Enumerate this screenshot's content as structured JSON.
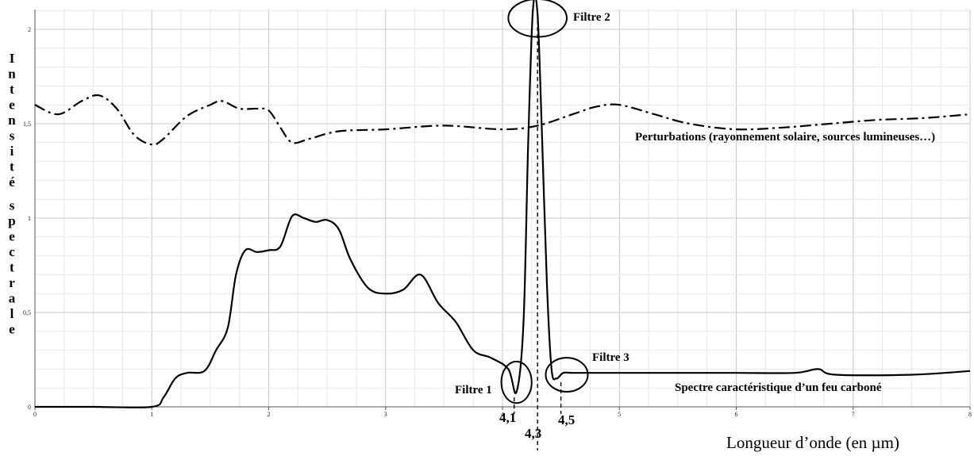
{
  "chart_data": {
    "type": "line",
    "xlabel": "Longueur d’onde (en µm)",
    "ylabel": "Intensité spectrale",
    "xlim": [
      0,
      8
    ],
    "ylim": [
      0,
      2.1
    ],
    "grid": true,
    "x_ticks": [
      "0",
      "1",
      "2",
      "3",
      "4",
      "5",
      "6",
      "7",
      "8"
    ],
    "y_ticks": [
      {
        "value": 0,
        "label": "0"
      },
      {
        "value": 0.5,
        "label": "0,5"
      },
      {
        "value": 1,
        "label": "1"
      },
      {
        "value": 1.5,
        "label": "1,5"
      },
      {
        "value": 2,
        "label": "2"
      }
    ],
    "series": [
      {
        "name": "Perturbations (rayonnement solaire, sources lumineuses…)",
        "style": "dash-dot",
        "x": [
          0,
          0.2,
          0.4,
          0.55,
          0.7,
          0.85,
          1.0,
          1.1,
          1.3,
          1.5,
          1.6,
          1.75,
          1.9,
          2.0,
          2.1,
          2.2,
          2.35,
          2.6,
          3.0,
          3.5,
          4.0,
          4.3,
          4.6,
          4.8,
          5.0,
          5.3,
          5.6,
          6.0,
          6.4,
          6.8,
          7.2,
          7.6,
          8.0
        ],
        "y": [
          1.6,
          1.55,
          1.62,
          1.65,
          1.58,
          1.44,
          1.39,
          1.42,
          1.54,
          1.6,
          1.62,
          1.58,
          1.58,
          1.57,
          1.48,
          1.4,
          1.42,
          1.46,
          1.47,
          1.49,
          1.47,
          1.49,
          1.55,
          1.59,
          1.6,
          1.55,
          1.5,
          1.47,
          1.48,
          1.5,
          1.52,
          1.53,
          1.55
        ]
      },
      {
        "name": "Spectre caractéristique d’un feu carboné",
        "style": "solid",
        "x": [
          0,
          0.5,
          1.0,
          1.1,
          1.2,
          1.3,
          1.45,
          1.55,
          1.65,
          1.72,
          1.8,
          1.9,
          2.0,
          2.1,
          2.2,
          2.3,
          2.4,
          2.5,
          2.6,
          2.7,
          2.85,
          3.0,
          3.15,
          3.3,
          3.45,
          3.6,
          3.75,
          3.9,
          4.05,
          4.12,
          4.18,
          4.22,
          4.26,
          4.3,
          4.34,
          4.38,
          4.42,
          4.46,
          4.52,
          4.6,
          4.8,
          5.5,
          6.0,
          6.5,
          6.7,
          6.85,
          7.5,
          8.0
        ],
        "y": [
          0,
          0,
          0,
          0.05,
          0.15,
          0.18,
          0.19,
          0.3,
          0.42,
          0.7,
          0.83,
          0.82,
          0.83,
          0.85,
          1.01,
          1.0,
          0.98,
          0.99,
          0.94,
          0.78,
          0.63,
          0.6,
          0.62,
          0.7,
          0.55,
          0.45,
          0.3,
          0.26,
          0.2,
          0.08,
          0.45,
          1.4,
          2.1,
          2.08,
          1.4,
          0.65,
          0.2,
          0.15,
          0.18,
          0.18,
          0.18,
          0.18,
          0.18,
          0.18,
          0.2,
          0.17,
          0.17,
          0.19
        ]
      }
    ],
    "annotations": {
      "filters": [
        {
          "label": "Filtre 1",
          "cx": 4.12,
          "cy": 0.13,
          "rx": 0.13,
          "ry": 0.11,
          "line_x": 4.1,
          "line_top": 0.05
        },
        {
          "label": "Filtre 2",
          "cx": 4.3,
          "cy": 2.06,
          "rx": 0.25,
          "ry": 0.1,
          "line_x": 4.3,
          "line_top": 2.05
        },
        {
          "label": "Filtre 3",
          "cx": 4.55,
          "cy": 0.17,
          "rx": 0.18,
          "ry": 0.09,
          "line_x": 4.5,
          "line_top": 0.13
        }
      ],
      "wavelength_labels": [
        {
          "text": "4,1",
          "x": 4.1
        },
        {
          "text": "4,3",
          "x": 4.3
        },
        {
          "text": "4,5",
          "x": 4.5
        }
      ],
      "perturbation_label": "Perturbations (rayonnement solaire, sources lumineuses…)",
      "spectrum_label": "Spectre caractéristique d’un feu carboné"
    }
  }
}
